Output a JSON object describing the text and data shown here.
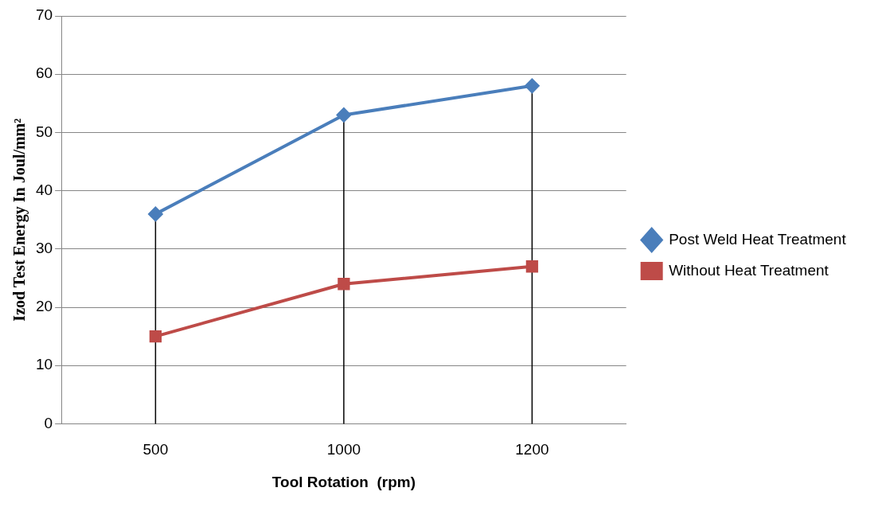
{
  "chart_data": {
    "type": "line",
    "xlabel": "Tool Rotation  (rpm)",
    "ylabel": "Izod Test Energy In Joul/mm²",
    "categories": [
      "500",
      "1000",
      "1200"
    ],
    "series": [
      {
        "name": "Post Weld Heat Treatment",
        "color": "#4a7ebb",
        "values": [
          36,
          53,
          58
        ],
        "marker": "diamond"
      },
      {
        "name": "Without Heat Treatment",
        "color": "#be4b48",
        "values": [
          15,
          24,
          27
        ],
        "marker": "square"
      }
    ],
    "ylim": [
      0,
      70
    ],
    "yticks": [
      0,
      10,
      20,
      30,
      40,
      50,
      60,
      70
    ],
    "grid": "y",
    "legend": "right",
    "line_style": "solid",
    "ref_lines": [
      {
        "axis": "x",
        "value": "500",
        "color": "#000000"
      },
      {
        "axis": "x",
        "value": "1000",
        "color": "#000000"
      },
      {
        "axis": "x",
        "value": "1200",
        "color": "#000000"
      }
    ]
  }
}
